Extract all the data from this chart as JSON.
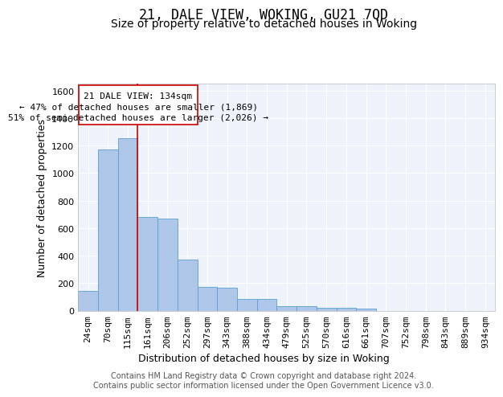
{
  "title": "21, DALE VIEW, WOKING, GU21 7QD",
  "subtitle": "Size of property relative to detached houses in Woking",
  "xlabel": "Distribution of detached houses by size in Woking",
  "ylabel": "Number of detached properties",
  "bin_labels": [
    "24sqm",
    "70sqm",
    "115sqm",
    "161sqm",
    "206sqm",
    "252sqm",
    "297sqm",
    "343sqm",
    "388sqm",
    "434sqm",
    "479sqm",
    "525sqm",
    "570sqm",
    "616sqm",
    "661sqm",
    "707sqm",
    "752sqm",
    "798sqm",
    "843sqm",
    "889sqm",
    "934sqm"
  ],
  "bar_heights": [
    145,
    1170,
    1250,
    680,
    670,
    370,
    170,
    165,
    85,
    85,
    30,
    30,
    20,
    20,
    15,
    0,
    0,
    0,
    0,
    0,
    0
  ],
  "bar_color": "#aec6e8",
  "bar_edge_color": "#5a9fd4",
  "background_color": "#eef3fb",
  "grid_color": "#ffffff",
  "vline_x": 2.5,
  "vline_color": "#cc0000",
  "annotation_line1": "21 DALE VIEW: 134sqm",
  "annotation_line2": "← 47% of detached houses are smaller (1,869)",
  "annotation_line3": "51% of semi-detached houses are larger (2,026) →",
  "annotation_box_color": "#ffffff",
  "annotation_box_edge": "#cc0000",
  "ylim": [
    0,
    1650
  ],
  "yticks": [
    0,
    200,
    400,
    600,
    800,
    1000,
    1200,
    1400,
    1600
  ],
  "footer_text": "Contains HM Land Registry data © Crown copyright and database right 2024.\nContains public sector information licensed under the Open Government Licence v3.0.",
  "title_fontsize": 12,
  "subtitle_fontsize": 10,
  "axis_label_fontsize": 9,
  "tick_fontsize": 8,
  "annotation_fontsize": 8,
  "footer_fontsize": 7
}
